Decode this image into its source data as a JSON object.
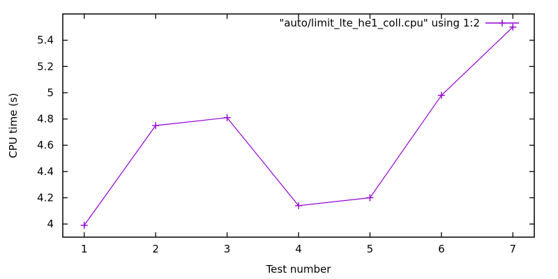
{
  "chart_data": {
    "type": "line",
    "title": "",
    "xlabel": "Test number",
    "ylabel": "CPU time (s)",
    "series": [
      {
        "name": "\"auto/limit_lte_he1_coll.cpu\" using 1:2",
        "x": [
          1,
          2,
          3,
          4,
          5,
          6,
          7
        ],
        "y": [
          3.99,
          4.75,
          4.81,
          4.14,
          4.2,
          4.98,
          5.5
        ],
        "color": "#9400d3",
        "marker": "plus",
        "line_style": "solid"
      }
    ],
    "xlim": [
      0.7,
      7.3
    ],
    "ylim": [
      3.9,
      5.6
    ],
    "xticks": [
      1,
      2,
      3,
      4,
      5,
      6,
      7
    ],
    "xtick_labels": [
      "1",
      "2",
      "3",
      "4",
      "5",
      "6",
      "7"
    ],
    "yticks": [
      4.0,
      4.2,
      4.4,
      4.6,
      4.8,
      5.0,
      5.2,
      5.4
    ],
    "ytick_labels": [
      "4",
      "4.2",
      "4.4",
      "4.6",
      "4.8",
      "5",
      "5.2",
      "5.4"
    ],
    "grid": false,
    "legend_position": "top-right-inside",
    "background_color": "#ffffff",
    "axis_color": "#000000",
    "tick_style": "inward-mirrored"
  }
}
